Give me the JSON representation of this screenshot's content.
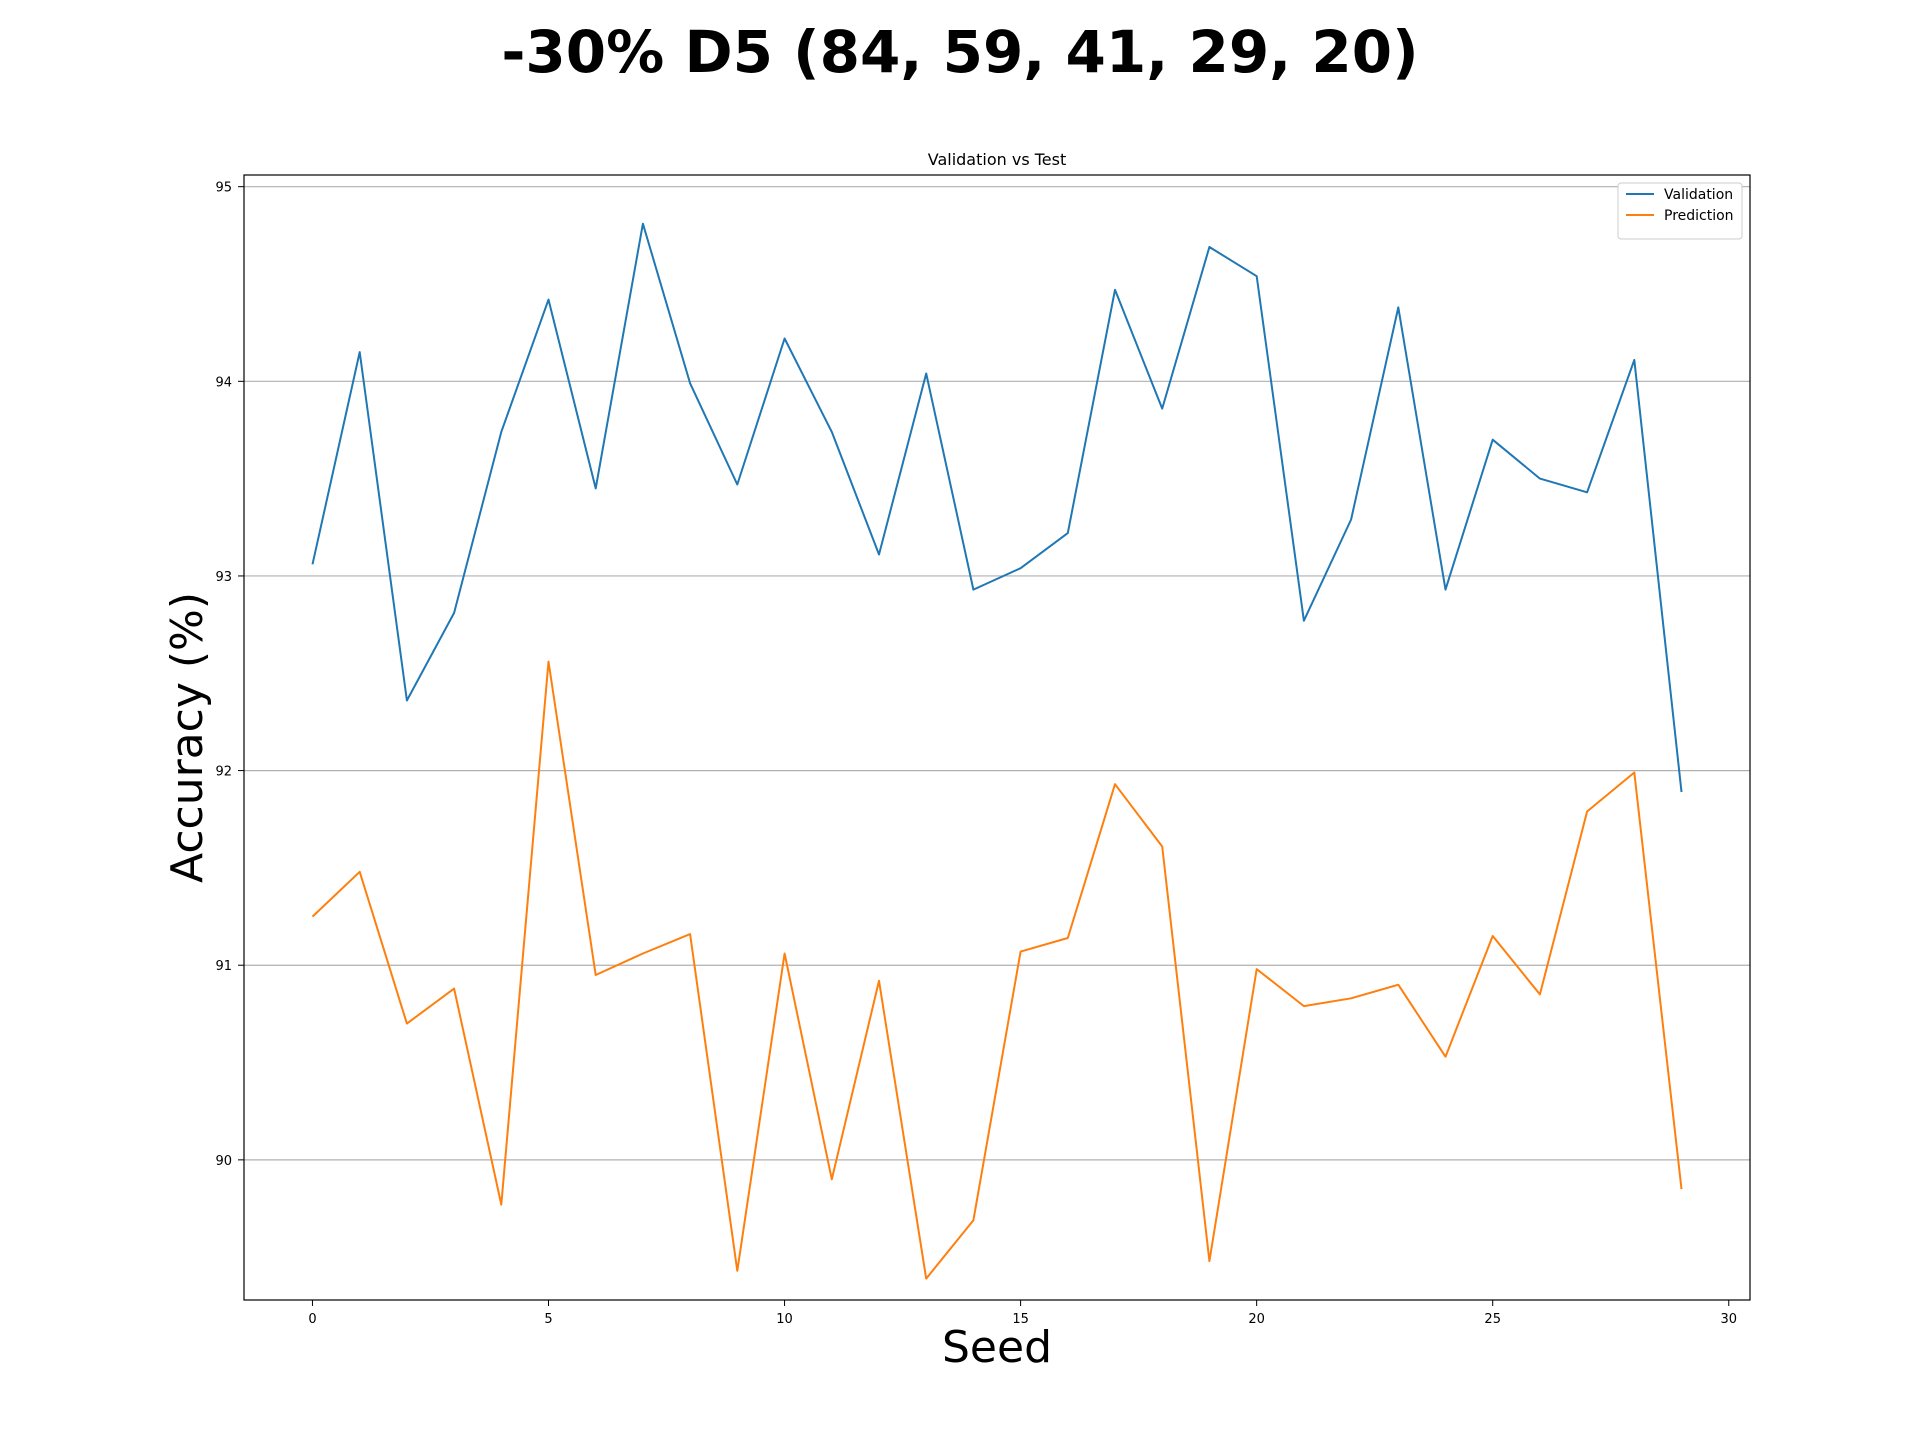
{
  "suptitle": "-30% D5 (84, 59, 41, 29, 20)",
  "chart_data": {
    "type": "line",
    "title": "Validation vs Test",
    "xlabel": "Seed",
    "ylabel": "Accuracy (%)",
    "xlim": [
      -1.45,
      30.45
    ],
    "ylim": [
      89.28,
      95.06
    ],
    "xticks": [
      0,
      5,
      10,
      15,
      20,
      25,
      30
    ],
    "yticks": [
      90,
      91,
      92,
      93,
      94,
      95
    ],
    "grid": "y-major",
    "legend": "top-right",
    "x": [
      0,
      1,
      2,
      3,
      4,
      5,
      6,
      7,
      8,
      9,
      10,
      11,
      12,
      13,
      14,
      15,
      16,
      17,
      18,
      19,
      20,
      21,
      22,
      23,
      24,
      25,
      26,
      27,
      28,
      29
    ],
    "series": [
      {
        "name": "Validation",
        "color": "#1f77b4",
        "values": [
          93.06,
          94.15,
          92.36,
          92.81,
          93.74,
          94.42,
          93.45,
          94.81,
          93.99,
          93.47,
          94.22,
          93.74,
          93.11,
          94.04,
          92.93,
          93.04,
          93.22,
          94.47,
          93.86,
          94.69,
          94.54,
          92.77,
          93.29,
          94.38,
          92.93,
          93.7,
          93.5,
          93.43,
          94.11,
          91.89
        ]
      },
      {
        "name": "Prediction",
        "color": "#ff7f0e",
        "values": [
          91.25,
          91.48,
          90.7,
          90.88,
          89.77,
          92.56,
          90.95,
          91.06,
          91.16,
          89.43,
          91.06,
          89.9,
          90.92,
          89.39,
          89.69,
          91.07,
          91.14,
          91.93,
          91.61,
          89.48,
          90.98,
          90.79,
          90.83,
          90.9,
          90.53,
          91.15,
          90.85,
          91.79,
          91.99,
          89.85
        ]
      }
    ]
  }
}
